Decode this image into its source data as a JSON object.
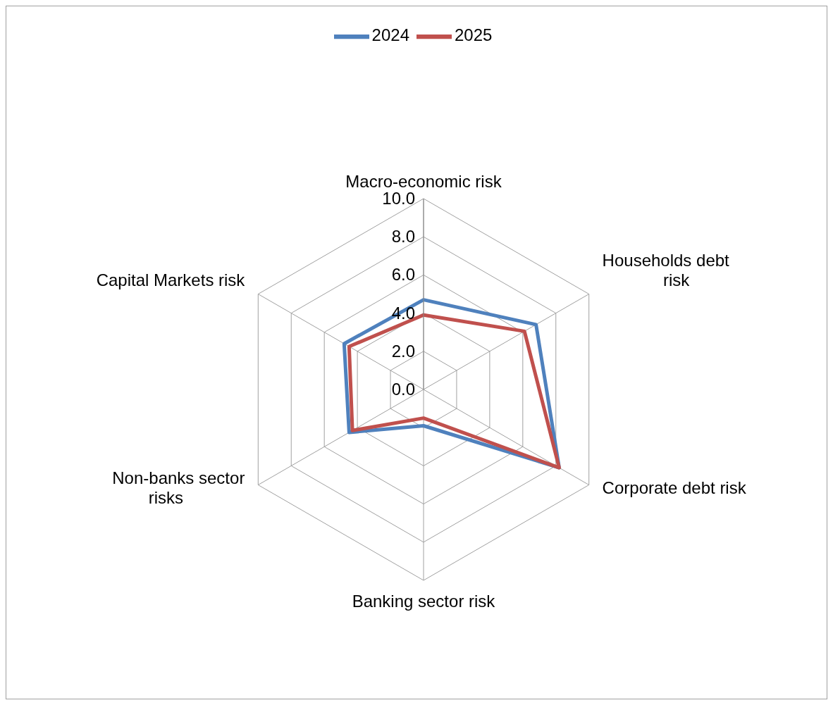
{
  "chart_data": {
    "type": "radar",
    "categories": [
      "Macro-economic risk",
      "Households debt\nrisk",
      "Corporate debt risk",
      "Banking sector risk",
      "Non-banks  sector\nrisks",
      "Capital Markets risk"
    ],
    "series": [
      {
        "name": "2024",
        "color": "#4f81bd",
        "values": [
          4.7,
          6.8,
          8.2,
          1.9,
          4.5,
          4.8
        ]
      },
      {
        "name": "2025",
        "color": "#c0504d",
        "values": [
          3.9,
          6.1,
          8.2,
          1.5,
          4.3,
          4.5
        ]
      }
    ],
    "ylim": [
      0,
      10
    ],
    "yticks": [
      {
        "value": 0,
        "label": "0.0"
      },
      {
        "value": 2,
        "label": "2.0"
      },
      {
        "value": 4,
        "label": "4.0"
      },
      {
        "value": 6,
        "label": "6.0"
      },
      {
        "value": 8,
        "label": "8.0"
      },
      {
        "value": 10,
        "label": "10.0"
      }
    ],
    "grid": true,
    "legend": "top",
    "marker": "none",
    "line_style": "solid"
  }
}
